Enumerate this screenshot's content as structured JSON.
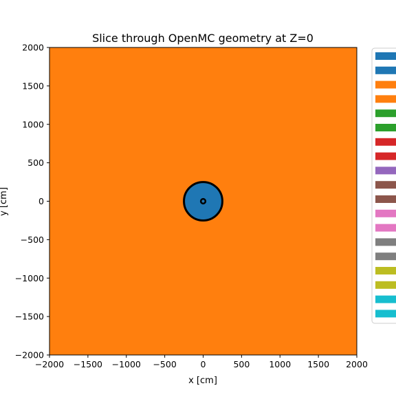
{
  "chart_data": {
    "type": "heatmap",
    "title": "Slice through OpenMC geometry at Z=0",
    "xlabel": "x [cm]",
    "ylabel": "y [cm]",
    "xlim": [
      -2000,
      2000
    ],
    "ylim": [
      -2000,
      2000
    ],
    "xticks": [
      -2000,
      -1500,
      -1000,
      -500,
      0,
      500,
      1000,
      1500,
      2000
    ],
    "yticks": [
      -2000,
      -1500,
      -1000,
      -500,
      0,
      500,
      1000,
      1500,
      2000
    ],
    "grid": false,
    "legend_position": "right",
    "background_region": {
      "color": "#ff7f0e"
    },
    "regions": [
      {
        "shape": "circle",
        "center": [
          0,
          0
        ],
        "radius": 250,
        "color": "#1f77b4",
        "outline": "#000000"
      },
      {
        "shape": "circle",
        "center": [
          0,
          0
        ],
        "radius": 30,
        "color": "#1f77b4",
        "outline": "#000000"
      }
    ],
    "legend_colors": [
      "#1f77b4",
      "#1f77b4",
      "#ff7f0e",
      "#ff7f0e",
      "#2ca02c",
      "#2ca02c",
      "#d62728",
      "#d62728",
      "#9467bd",
      "#8c564b",
      "#8c564b",
      "#e377c2",
      "#e377c2",
      "#7f7f7f",
      "#7f7f7f",
      "#bcbd22",
      "#bcbd22",
      "#17becf",
      "#17becf"
    ]
  }
}
